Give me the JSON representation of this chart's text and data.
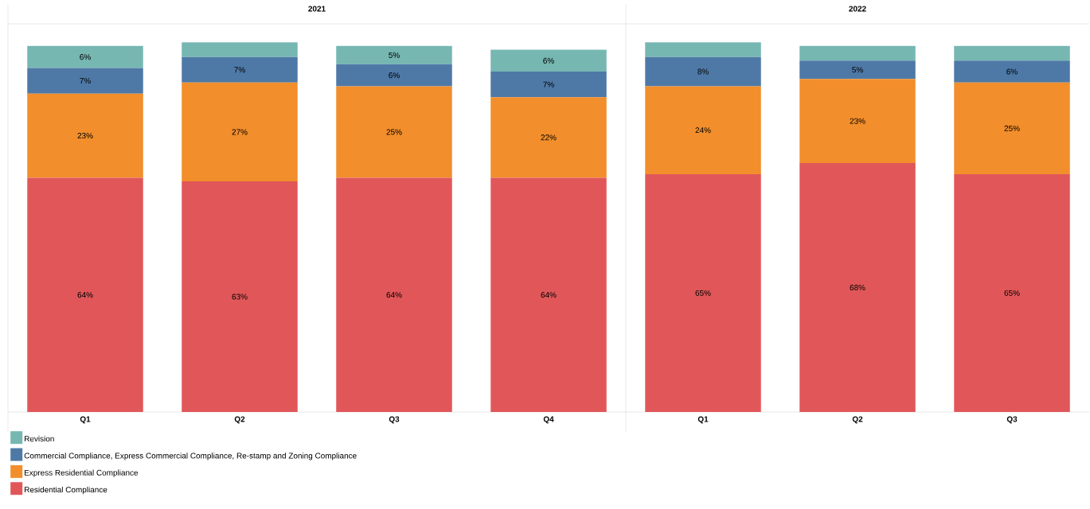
{
  "chart_data": [
    {
      "type": "bar",
      "title": "2021",
      "stacked": true,
      "categories": [
        "Q1",
        "Q2",
        "Q3",
        "Q4"
      ],
      "tick_labels": "x",
      "legend": "bottom",
      "series": [
        {
          "name": "Residential Compliance",
          "color": "#e15759",
          "values": [
            64,
            63,
            64,
            64
          ],
          "value_labels": [
            "64%",
            "63%",
            "64%",
            "64%"
          ]
        },
        {
          "name": "Express Residential Compliance",
          "color": "#f28e2b",
          "values": [
            23,
            27,
            25,
            22
          ],
          "value_labels": [
            "23%",
            "27%",
            "25%",
            "22%"
          ]
        },
        {
          "name": "Commercial Compliance, Express Commercial Compliance, Re-stamp and Zoning Compliance",
          "color": "#4e79a7",
          "values": [
            7,
            7,
            6,
            7
          ],
          "value_labels": [
            "7%",
            "7%",
            "6%",
            "7%"
          ]
        },
        {
          "name": "Revision",
          "color": "#76b7b2",
          "values": [
            6,
            4,
            5,
            6
          ],
          "value_labels": [
            "6%",
            null,
            "5%",
            "6%"
          ]
        }
      ]
    },
    {
      "type": "bar",
      "title": "2022",
      "stacked": true,
      "categories": [
        "Q1",
        "Q2",
        "Q3"
      ],
      "tick_labels": "x",
      "series": [
        {
          "color": "#e15759",
          "values": [
            65,
            68,
            65
          ],
          "value_labels": [
            "65%",
            "68%",
            "65%"
          ]
        },
        {
          "color": "#f28e2b",
          "values": [
            24,
            23,
            25
          ],
          "value_labels": [
            "24%",
            "23%",
            "25%"
          ]
        },
        {
          "color": "#4e79a7",
          "values": [
            8,
            5,
            6
          ],
          "value_labels": [
            "8%",
            "5%",
            "6%"
          ]
        },
        {
          "color": "#76b7b2",
          "values": [
            4,
            4,
            4
          ],
          "value_labels": [
            null,
            null,
            null
          ]
        }
      ]
    }
  ]
}
